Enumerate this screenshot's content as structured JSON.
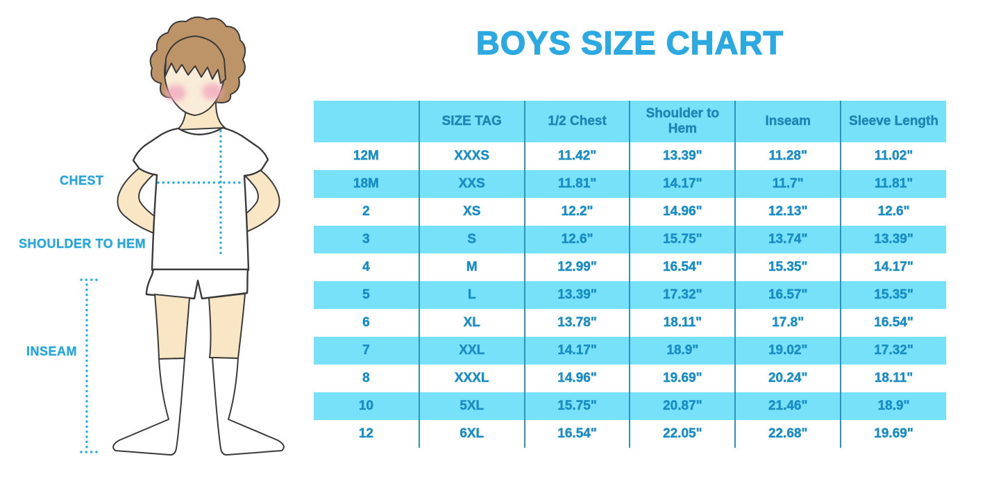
{
  "title": "BOYS SIZE CHART",
  "figure": {
    "labels": {
      "chest": "CHEST",
      "shoulder_to_hem": "SHOULDER TO HEM",
      "inseam": "INSEAM"
    }
  },
  "colors": {
    "title_blue": "#2ba9e0",
    "label_blue": "#29a7dc",
    "table_cyan": "#76e1f8",
    "table_divider": "#2b93c2",
    "table_text": "#1a8dc4",
    "dotted_line": "#29ace3",
    "skin": "#f8e6c4",
    "hair": "#bd9368",
    "cheek": "#f2a9be",
    "outline": "#3a3a3a"
  },
  "chart_data": {
    "type": "table",
    "title": "BOYS SIZE CHART",
    "columns": [
      "",
      "SIZE TAG",
      "1/2 Chest",
      "Shoulder to Hem",
      "Inseam",
      "Sleeve Length"
    ],
    "rows": [
      [
        "12M",
        "XXXS",
        "11.42\"",
        "13.39\"",
        "11.28\"",
        "11.02\""
      ],
      [
        "18M",
        "XXS",
        "11.81\"",
        "14.17\"",
        "11.7\"",
        "11.81\""
      ],
      [
        "2",
        "XS",
        "12.2\"",
        "14.96\"",
        "12.13\"",
        "12.6\""
      ],
      [
        "3",
        "S",
        "12.6\"",
        "15.75\"",
        "13.74\"",
        "13.39\""
      ],
      [
        "4",
        "M",
        "12.99\"",
        "16.54\"",
        "15.35\"",
        "14.17\""
      ],
      [
        "5",
        "L",
        "13.39\"",
        "17.32\"",
        "16.57\"",
        "15.35\""
      ],
      [
        "6",
        "XL",
        "13.78\"",
        "18.11\"",
        "17.8\"",
        "16.54\""
      ],
      [
        "7",
        "XXL",
        "14.17\"",
        "18.9\"",
        "19.02\"",
        "17.32\""
      ],
      [
        "8",
        "XXXL",
        "14.96\"",
        "19.69\"",
        "20.24\"",
        "18.11\""
      ],
      [
        "10",
        "5XL",
        "15.75\"",
        "20.87\"",
        "21.46\"",
        "18.9\""
      ],
      [
        "12",
        "6XL",
        "16.54\"",
        "22.05\"",
        "22.68\"",
        "19.69\""
      ]
    ]
  }
}
